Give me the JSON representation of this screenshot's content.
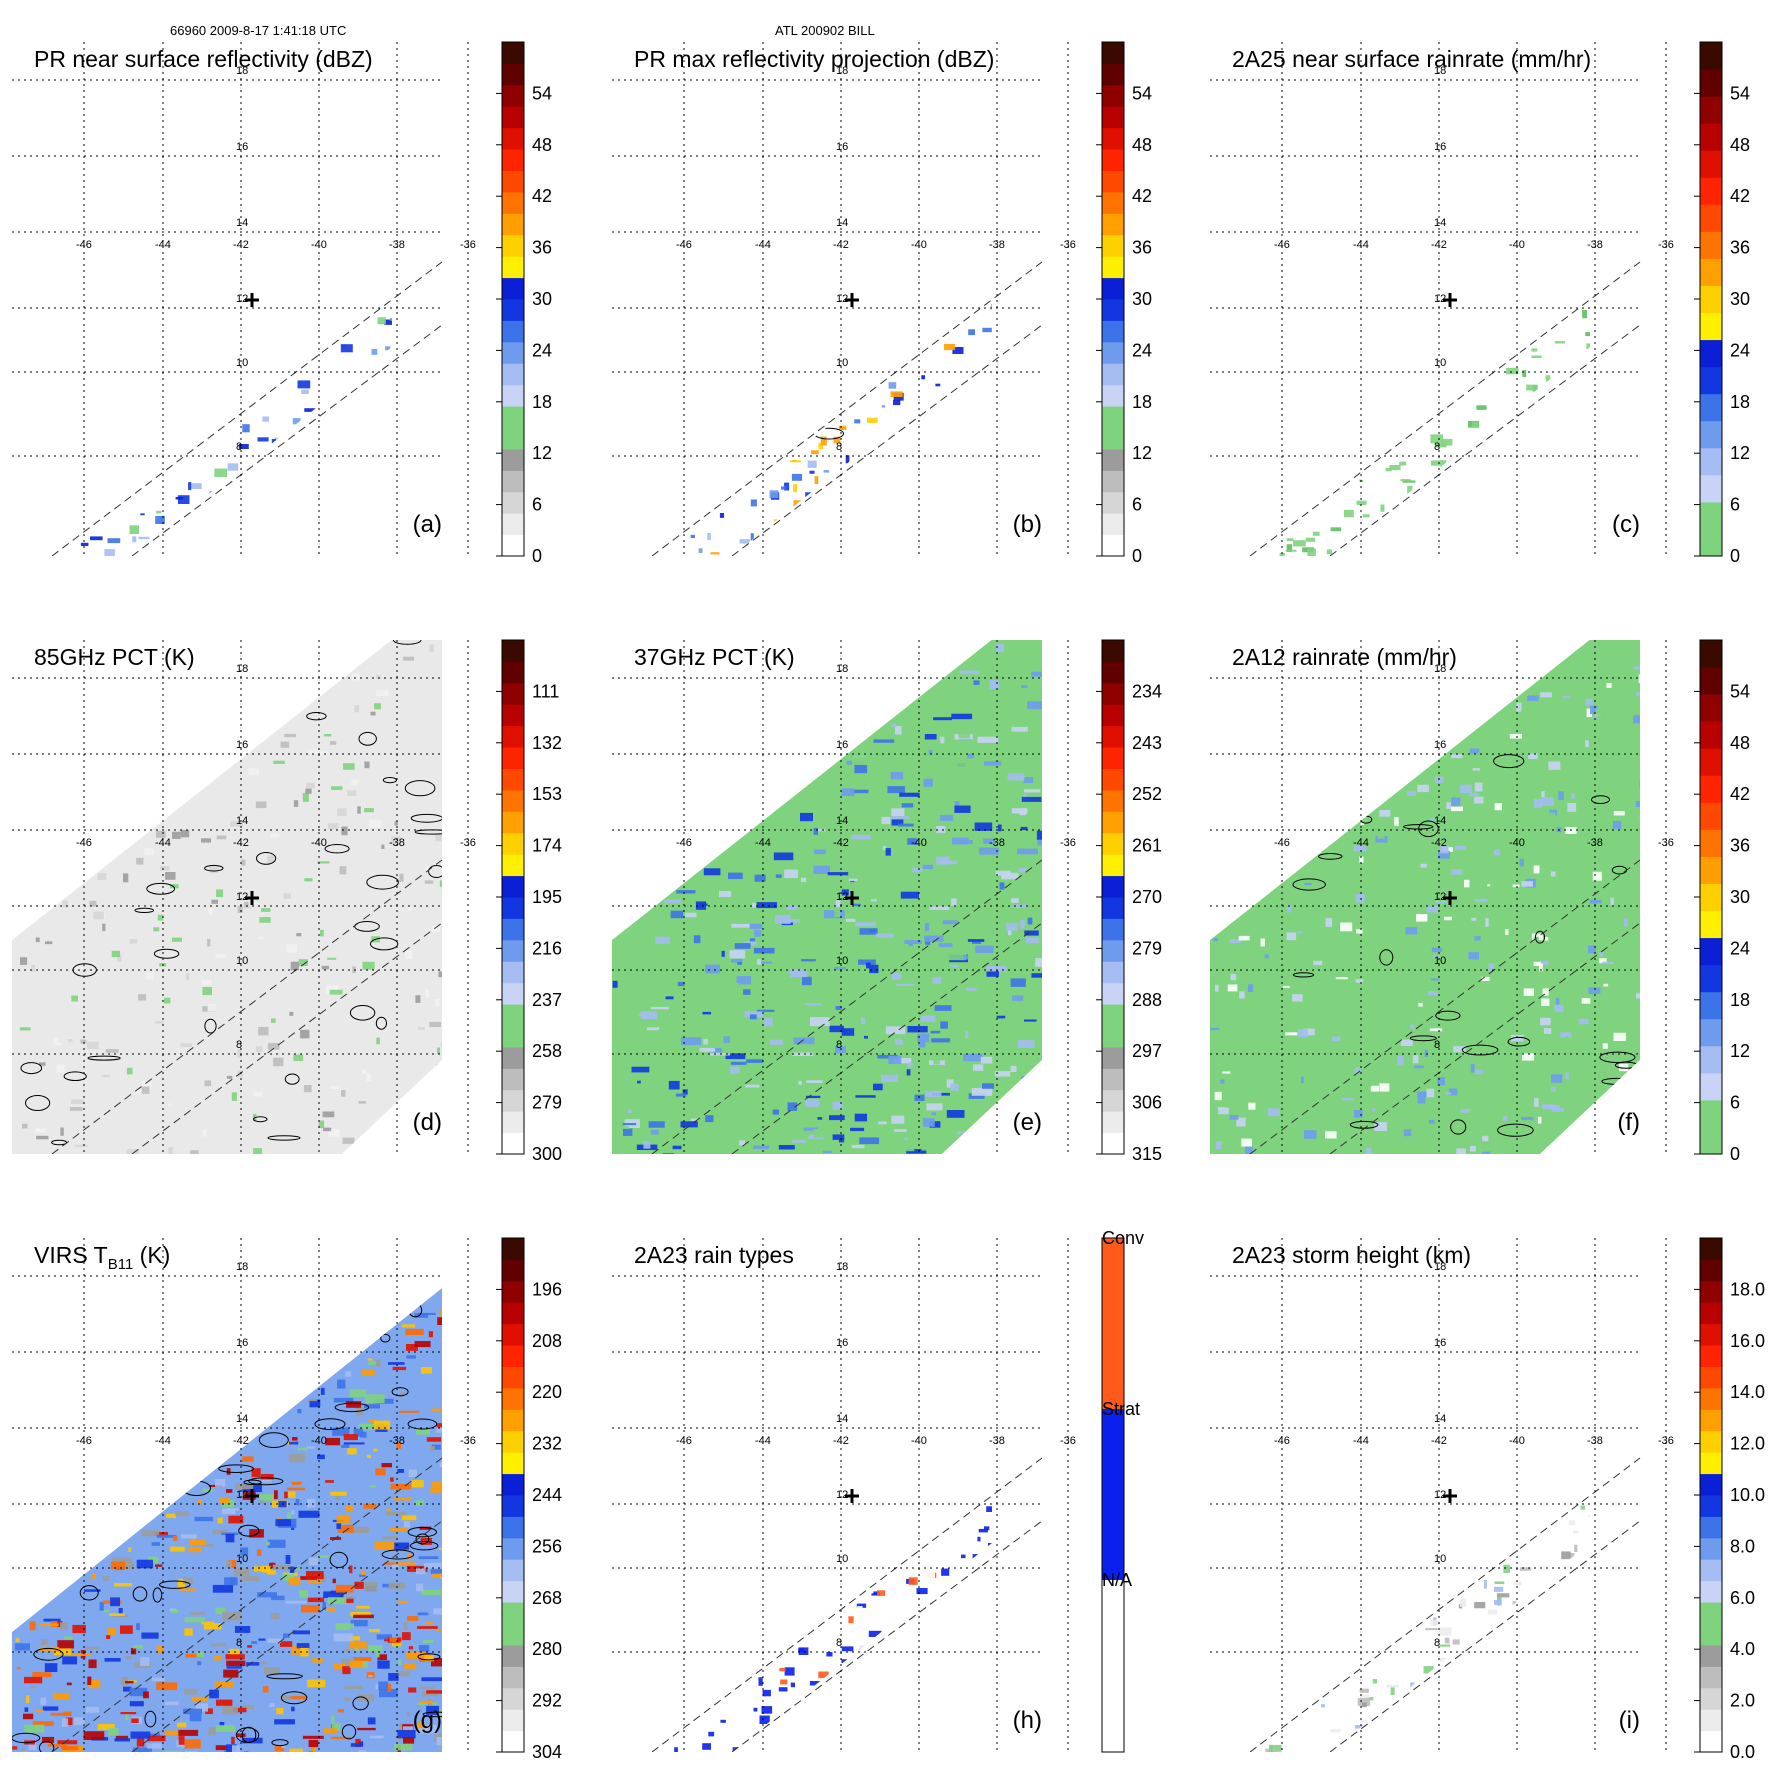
{
  "header": {
    "left": "66960 2009-8-17 1:41:18 UTC",
    "center": "ATL 200902 BILL"
  },
  "colors": {
    "grey_ramp": [
      "#ffffff",
      "#f2f2f2",
      "#e3e3e3",
      "#d1d1d1",
      "#bdbdbd",
      "#a6a6a6"
    ],
    "green": "#7fd37f",
    "green_dark": "#5fbf5f",
    "blue_ramp": [
      "#cdd6f5",
      "#a9bff2",
      "#7ea7f0",
      "#4f84ea",
      "#2456e4",
      "#0a1fd6"
    ],
    "yellow": "#ffef00",
    "warm_ramp": [
      "#ffc400",
      "#ff9a00",
      "#ff6a00",
      "#ff3a00",
      "#e01200",
      "#b80000",
      "#7d0000",
      "#4a0000"
    ],
    "orange_red": "#ff5a1a",
    "conv_blue": "#0a20ee"
  },
  "chart_data": [
    {
      "type": "heatmap",
      "panel_label": "(a)",
      "title": "PR near surface reflectivity (dBZ)",
      "colorbar_ticks": [
        "0",
        "6",
        "12",
        "18",
        "24",
        "30",
        "36",
        "42",
        "48",
        "54"
      ],
      "colorbar_kind": "standard",
      "lon_ticks": [
        "-46",
        "-44",
        "-42",
        "-40",
        "-38",
        "-36"
      ],
      "lat_ticks": [
        "8",
        "10",
        "12",
        "14",
        "16",
        "18"
      ],
      "swath": "pr",
      "fill": "pr_sparse"
    },
    {
      "type": "heatmap",
      "panel_label": "(b)",
      "title": "PR max reflectivity projection (dBZ)",
      "colorbar_ticks": [
        "0",
        "6",
        "12",
        "18",
        "24",
        "30",
        "36",
        "42",
        "48",
        "54"
      ],
      "colorbar_kind": "standard",
      "lon_ticks": [
        "-46",
        "-44",
        "-42",
        "-40",
        "-38",
        "-36"
      ],
      "lat_ticks": [
        "8",
        "10",
        "12",
        "14",
        "16",
        "18"
      ],
      "swath": "pr",
      "fill": "pr_max"
    },
    {
      "type": "heatmap",
      "panel_label": "(c)",
      "title": "2A25 near surface rainrate (mm/hr)",
      "colorbar_ticks": [
        "0",
        "6",
        "12",
        "18",
        "24",
        "30",
        "36",
        "42",
        "48",
        "54"
      ],
      "colorbar_kind": "rain",
      "lon_ticks": [
        "-46",
        "-44",
        "-42",
        "-40",
        "-38",
        "-36"
      ],
      "lat_ticks": [
        "8",
        "10",
        "12",
        "14",
        "16",
        "18"
      ],
      "swath": "pr",
      "fill": "pr_rain"
    },
    {
      "type": "heatmap",
      "panel_label": "(d)",
      "title": "85GHz PCT (K)",
      "colorbar_ticks": [
        "300",
        "279",
        "258",
        "237",
        "216",
        "195",
        "174",
        "153",
        "132",
        "111"
      ],
      "colorbar_kind": "standard",
      "lon_ticks": [
        "-46",
        "-44",
        "-42",
        "-40",
        "-38",
        "-36"
      ],
      "lat_ticks": [
        "8",
        "10",
        "12",
        "14",
        "16",
        "18"
      ],
      "swath": "tmi",
      "fill": "pct85"
    },
    {
      "type": "heatmap",
      "panel_label": "(e)",
      "title": "37GHz PCT (K)",
      "colorbar_ticks": [
        "315",
        "306",
        "297",
        "288",
        "279",
        "270",
        "261",
        "252",
        "243",
        "234"
      ],
      "colorbar_kind": "standard",
      "lon_ticks": [
        "-46",
        "-44",
        "-42",
        "-40",
        "-38",
        "-36"
      ],
      "lat_ticks": [
        "8",
        "10",
        "12",
        "14",
        "16",
        "18"
      ],
      "swath": "tmi",
      "fill": "pct37"
    },
    {
      "type": "heatmap",
      "panel_label": "(f)",
      "title": "2A12 rainrate (mm/hr)",
      "colorbar_ticks": [
        "0",
        "6",
        "12",
        "18",
        "24",
        "30",
        "36",
        "42",
        "48",
        "54"
      ],
      "colorbar_kind": "rain",
      "lon_ticks": [
        "-46",
        "-44",
        "-42",
        "-40",
        "-38",
        "-36"
      ],
      "lat_ticks": [
        "8",
        "10",
        "12",
        "14",
        "16",
        "18"
      ],
      "swath": "tmi",
      "fill": "rain2a12"
    },
    {
      "type": "heatmap",
      "panel_label": "(g)",
      "title": "VIRS T",
      "title_sub": "B11",
      "title_end": " (K)",
      "colorbar_ticks": [
        "304",
        "292",
        "280",
        "268",
        "256",
        "244",
        "232",
        "220",
        "208",
        "196"
      ],
      "colorbar_kind": "standard",
      "lon_ticks": [
        "-46",
        "-44",
        "-42",
        "-40",
        "-38",
        "-36"
      ],
      "lat_ticks": [
        "8",
        "10",
        "12",
        "14",
        "16",
        "18"
      ],
      "swath": "virs",
      "fill": "virs"
    },
    {
      "type": "heatmap",
      "panel_label": "(h)",
      "title": "2A23 rain types",
      "colorbar_ticks": [
        "N/A",
        "Strat",
        "Conv"
      ],
      "colorbar_kind": "types",
      "lon_ticks": [
        "-46",
        "-44",
        "-42",
        "-40",
        "-38",
        "-36"
      ],
      "lat_ticks": [
        "8",
        "10",
        "12",
        "14",
        "16",
        "18"
      ],
      "swath": "pr",
      "fill": "raintype"
    },
    {
      "type": "heatmap",
      "panel_label": "(i)",
      "title": "2A23 storm height (km)",
      "colorbar_ticks": [
        "0.0",
        "2.0",
        "4.0",
        "6.0",
        "8.0",
        "10.0",
        "12.0",
        "14.0",
        "16.0",
        "18.0"
      ],
      "colorbar_kind": "standard",
      "lon_ticks": [
        "-46",
        "-44",
        "-42",
        "-40",
        "-38",
        "-36"
      ],
      "lat_ticks": [
        "8",
        "10",
        "12",
        "14",
        "16",
        "18"
      ],
      "swath": "pr",
      "fill": "height"
    }
  ]
}
